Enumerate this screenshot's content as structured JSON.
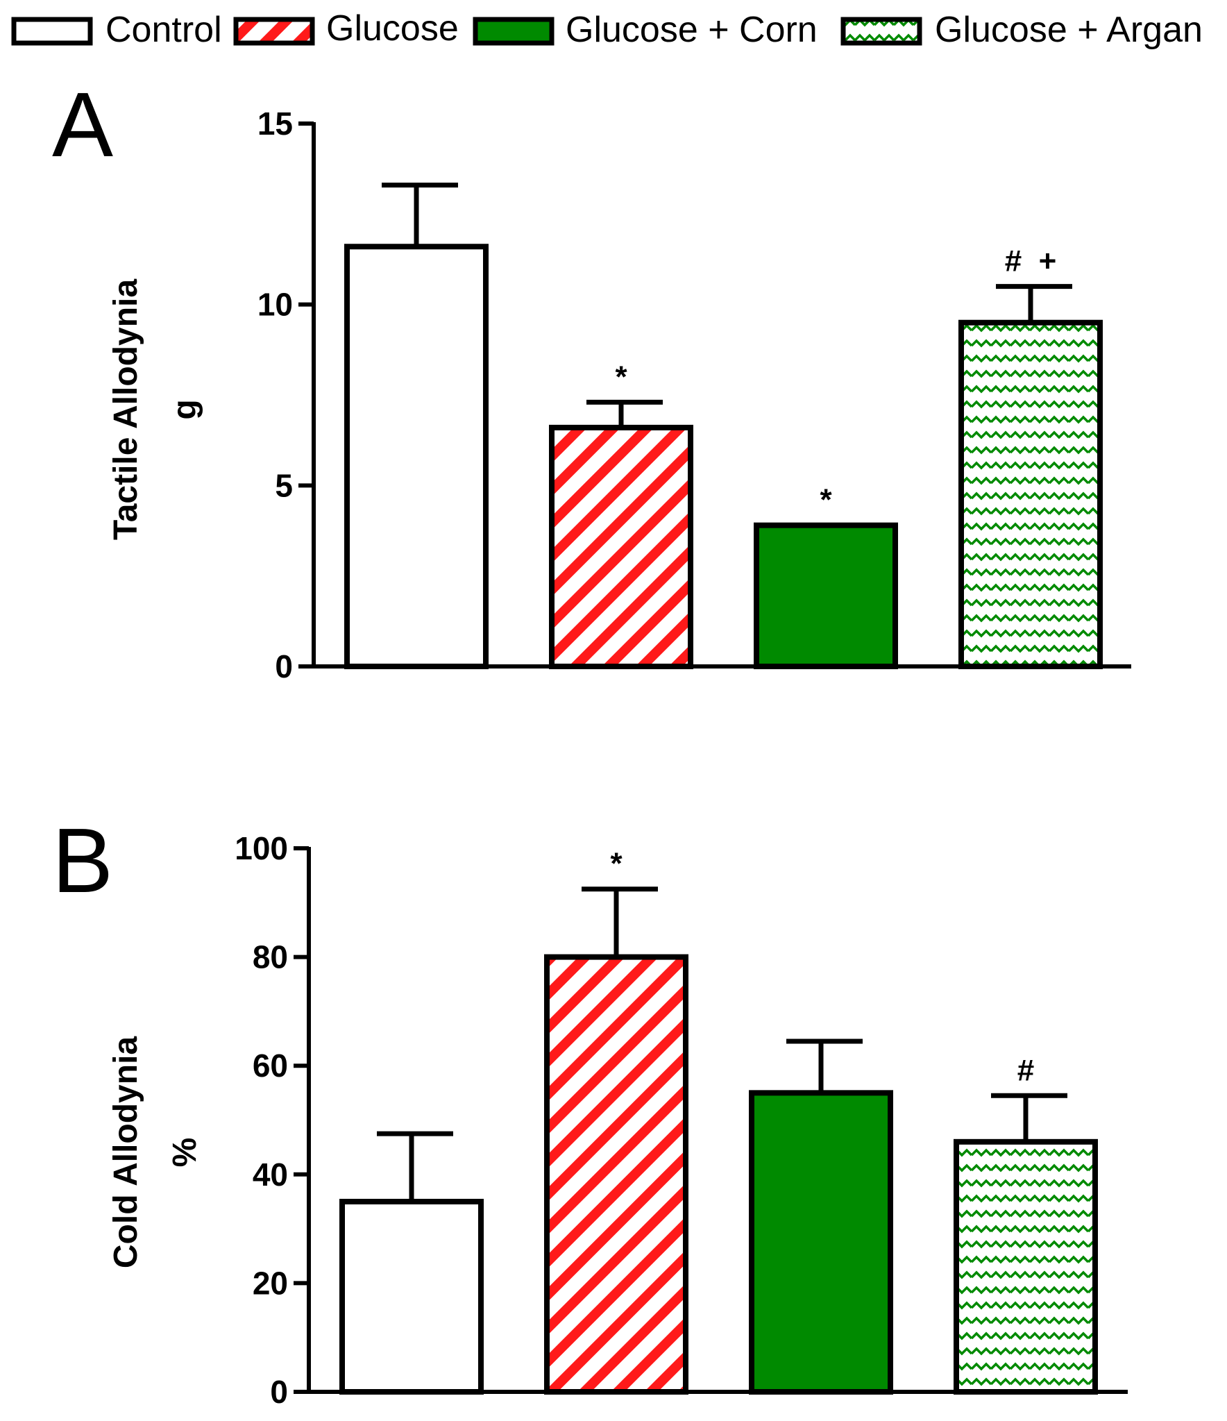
{
  "legend": [
    {
      "key": "control",
      "label": "Control"
    },
    {
      "key": "glucose",
      "label": "Glucose"
    },
    {
      "key": "corn",
      "label": "Glucose + Corn"
    },
    {
      "key": "argan",
      "label": "Glucose + Argan"
    }
  ],
  "colors": {
    "red": "#ff1a1a",
    "green": "#008a00",
    "black": "#000000",
    "white": "#ffffff"
  },
  "chart_data": [
    {
      "type": "bar",
      "panel": "A",
      "title": "",
      "xlabel": "",
      "ylabel": [
        "Tactile Allodynia",
        "g"
      ],
      "ylim": [
        0,
        15
      ],
      "yticks": [
        0,
        5,
        10,
        15
      ],
      "categories": [
        "Control",
        "Glucose",
        "Glucose + Corn",
        "Glucose + Argan"
      ],
      "series": [
        {
          "name": "Tactile Allodynia (g)",
          "values": [
            11.6,
            6.6,
            3.9,
            9.5
          ],
          "errors": [
            1.7,
            0.7,
            0.0,
            1.0
          ]
        }
      ],
      "annotations": [
        "",
        "*",
        "*",
        "#  +"
      ]
    },
    {
      "type": "bar",
      "panel": "B",
      "title": "",
      "xlabel": "",
      "ylabel": [
        "Cold Allodynia",
        "%"
      ],
      "ylim": [
        0,
        100
      ],
      "yticks": [
        0,
        20,
        40,
        60,
        80,
        100
      ],
      "categories": [
        "Control",
        "Glucose",
        "Glucose + Corn",
        "Glucose + Argan"
      ],
      "series": [
        {
          "name": "Cold Allodynia (%)",
          "values": [
            35,
            80,
            55,
            46
          ],
          "errors": [
            12.5,
            12.5,
            9.5,
            8.5
          ]
        }
      ],
      "annotations": [
        "",
        "*",
        "",
        "#"
      ]
    }
  ]
}
